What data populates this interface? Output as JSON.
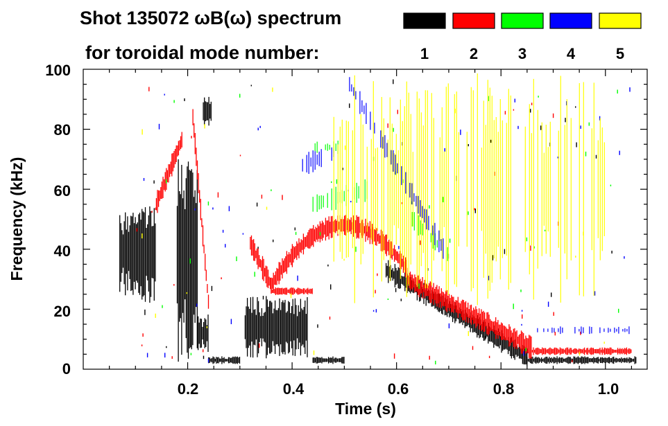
{
  "chart_data": {
    "type": "heatmap",
    "title_line1": "Shot 135072 ωB(ω) spectrum",
    "title_line2": "for toroidal mode number:",
    "xlabel": "Time (s)",
    "ylabel": "Frequency (kHz)",
    "xlim": [
      0.0,
      1.08
    ],
    "ylim": [
      0,
      100
    ],
    "x_ticks": [
      "0.2",
      "0.4",
      "0.6",
      "0.8",
      "1.0"
    ],
    "x_tick_values": [
      0.2,
      0.4,
      0.6,
      0.8,
      1.0
    ],
    "y_ticks": [
      "0",
      "20",
      "40",
      "60",
      "80",
      "100"
    ],
    "y_tick_values": [
      0,
      20,
      40,
      60,
      80,
      100
    ],
    "legend": [
      {
        "n": "1",
        "color": "#000000"
      },
      {
        "n": "2",
        "color": "#ff0000"
      },
      {
        "n": "3",
        "color": "#00ff00"
      },
      {
        "n": "4",
        "color": "#0000ff"
      },
      {
        "n": "5",
        "color": "#ffff00"
      }
    ],
    "series": [
      {
        "name": "n=1",
        "color": "#000000",
        "features": [
          {
            "label": "early burst",
            "t": [
              0.07,
              0.14
            ],
            "f_center": 40,
            "f_spread": 14
          },
          {
            "label": "spikes 0.18-0.22",
            "t": [
              0.18,
              0.22
            ],
            "f_center": 40,
            "f_spread": 30
          },
          {
            "label": "tone 0.23-0.24",
            "t": [
              0.23,
              0.245
            ],
            "f_center": 86,
            "f_spread": 4
          },
          {
            "label": "low band 0.22-0.24",
            "t": [
              0.22,
              0.24
            ],
            "f_center": 12,
            "f_spread": 5
          },
          {
            "label": "burst 0.31-0.43",
            "t": [
              0.31,
              0.43
            ],
            "f_center": 14,
            "f_spread": 8
          },
          {
            "label": "low line",
            "t": [
              0.24,
              0.3
            ],
            "f_center": 3,
            "f_spread": 1
          },
          {
            "label": "mid line",
            "t": [
              0.44,
              0.5
            ],
            "f_center": 3,
            "f_spread": 1
          },
          {
            "label": "chirp 0.58-0.85",
            "t": [
              0.58,
              0.85
            ],
            "f_start": 33,
            "f_end": 4
          },
          {
            "label": "late line",
            "t": [
              0.85,
              1.06
            ],
            "f_center": 3,
            "f_spread": 1
          }
        ]
      },
      {
        "name": "n=2",
        "color": "#ff0000",
        "features": [
          {
            "label": "rise 0.14-0.19",
            "t": [
              0.14,
              0.19
            ],
            "f_start": 55,
            "f_end": 77
          },
          {
            "label": "drop 0.21-0.24",
            "t": [
              0.21,
              0.24
            ],
            "f_start": 84,
            "f_end": 22
          },
          {
            "label": "decay 0.32-0.36",
            "t": [
              0.32,
              0.36
            ],
            "f_start": 42,
            "f_end": 28
          },
          {
            "label": "flat 0.36-0.44",
            "t": [
              0.36,
              0.44
            ],
            "f_center": 26,
            "f_spread": 1
          },
          {
            "label": "arc 0.36-0.62",
            "t": [
              0.36,
              0.62
            ],
            "f_peak": 48,
            "t_peak": 0.5
          },
          {
            "label": "descent 0.62-0.86",
            "t": [
              0.62,
              0.86
            ],
            "f_start": 30,
            "f_end": 7
          },
          {
            "label": "late band",
            "t": [
              0.86,
              1.05
            ],
            "f_center": 6,
            "f_spread": 1
          }
        ]
      },
      {
        "name": "n=3",
        "color": "#00ff00",
        "features": [
          {
            "label": "arc",
            "t": [
              0.44,
              0.55
            ],
            "f_start": 55,
            "f_end": 60
          },
          {
            "label": "fall",
            "t": [
              0.63,
              0.7
            ],
            "f_start": 50,
            "f_end": 38
          },
          {
            "label": "upper arc",
            "t": [
              0.44,
              0.49
            ],
            "f_center": 74,
            "f_spread": 2
          }
        ]
      },
      {
        "name": "n=4",
        "color": "#0000ff",
        "features": [
          {
            "label": "upper arc",
            "t": [
              0.42,
              0.48
            ],
            "f_start": 68,
            "f_end": 72
          },
          {
            "label": "high chirp",
            "t": [
              0.51,
              0.69
            ],
            "f_start": 95,
            "f_end": 40
          },
          {
            "label": "late band",
            "t": [
              0.87,
              1.05
            ],
            "f_center": 13,
            "f_spread": 1
          }
        ]
      },
      {
        "name": "n=5",
        "color": "#ffff00",
        "features": [
          {
            "label": "sparse points",
            "t": [
              0.48,
              1.0
            ],
            "f_center": 60,
            "f_spread": 30
          }
        ]
      }
    ]
  }
}
